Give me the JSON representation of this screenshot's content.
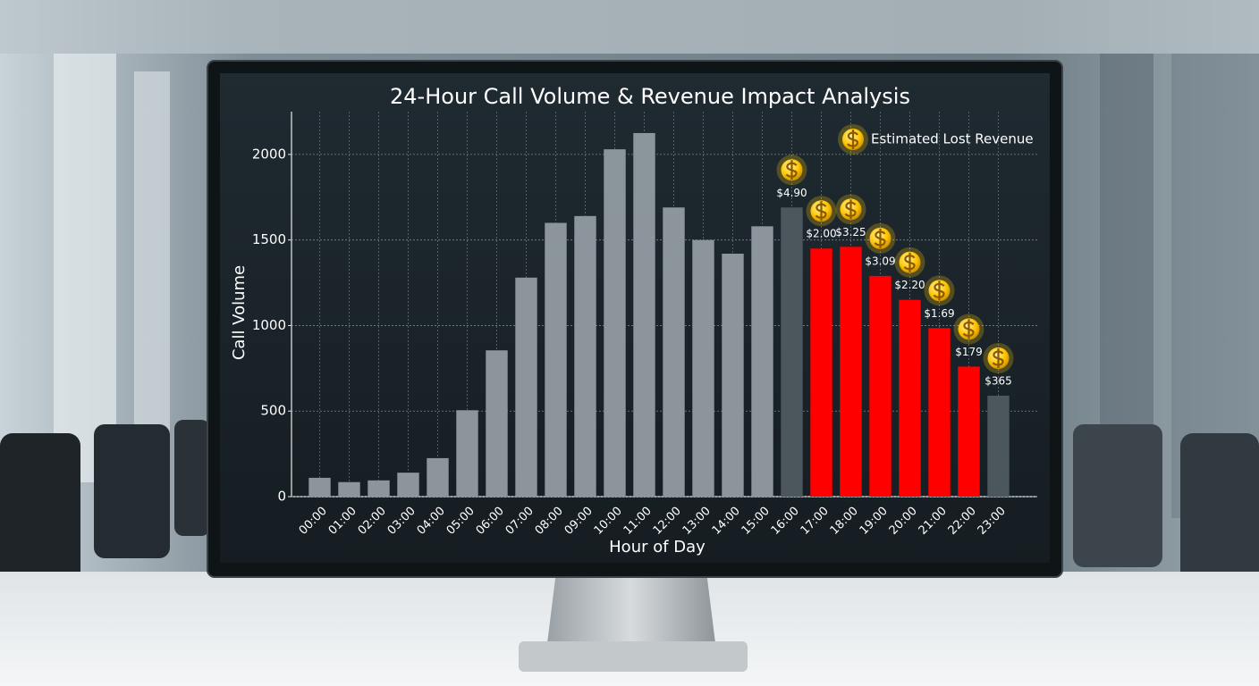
{
  "chart_data": {
    "type": "bar",
    "title": "24-Hour Call Volume & Revenue Impact Analysis",
    "x_label": "Hour of Day",
    "y_label": "Call Volume",
    "categories": [
      "00:00",
      "01:00",
      "02:00",
      "03:00",
      "04:00",
      "05:00",
      "06:00",
      "07:00",
      "08:00",
      "09:00",
      "10:00",
      "11:00",
      "12:00",
      "13:00",
      "14:00",
      "15:00",
      "16:00",
      "17:00",
      "18:00",
      "19:00",
      "20:00",
      "21:00",
      "22:00",
      "23:00"
    ],
    "values": [
      110,
      85,
      95,
      140,
      225,
      505,
      855,
      1280,
      1600,
      1640,
      2030,
      2125,
      1690,
      1500,
      1420,
      1580,
      1690,
      1450,
      1460,
      1290,
      1150,
      985,
      760,
      590
    ],
    "colors": [
      "#8c959c",
      "#8c959c",
      "#8c959c",
      "#8c959c",
      "#8c959c",
      "#8c959c",
      "#8c959c",
      "#8c959c",
      "#8c959c",
      "#8c959c",
      "#8c959c",
      "#8c959c",
      "#8c959c",
      "#8c959c",
      "#8c959c",
      "#8c959c",
      "#4b565d",
      "#ff0000",
      "#ff0000",
      "#ff0000",
      "#ff0000",
      "#ff0000",
      "#ff0000",
      "#4b565d"
    ],
    "ylim": [
      0,
      2250
    ],
    "yticks": [
      0,
      500,
      1000,
      1500,
      2000
    ],
    "grid": true,
    "legend": {
      "label": "Estimated Lost Revenue",
      "position": "upper right"
    },
    "annotations": [
      {
        "x": "16:00",
        "label": "$4.90"
      },
      {
        "x": "17:00",
        "label": "$2.00"
      },
      {
        "x": "18:00",
        "label": "$3.25"
      },
      {
        "x": "19:00",
        "label": "$3.09"
      },
      {
        "x": "20:00",
        "label": "$2.20"
      },
      {
        "x": "21:00",
        "label": "$1.69"
      },
      {
        "x": "22:00",
        "label": "$179"
      },
      {
        "x": "23:00",
        "label": "$365"
      }
    ]
  }
}
